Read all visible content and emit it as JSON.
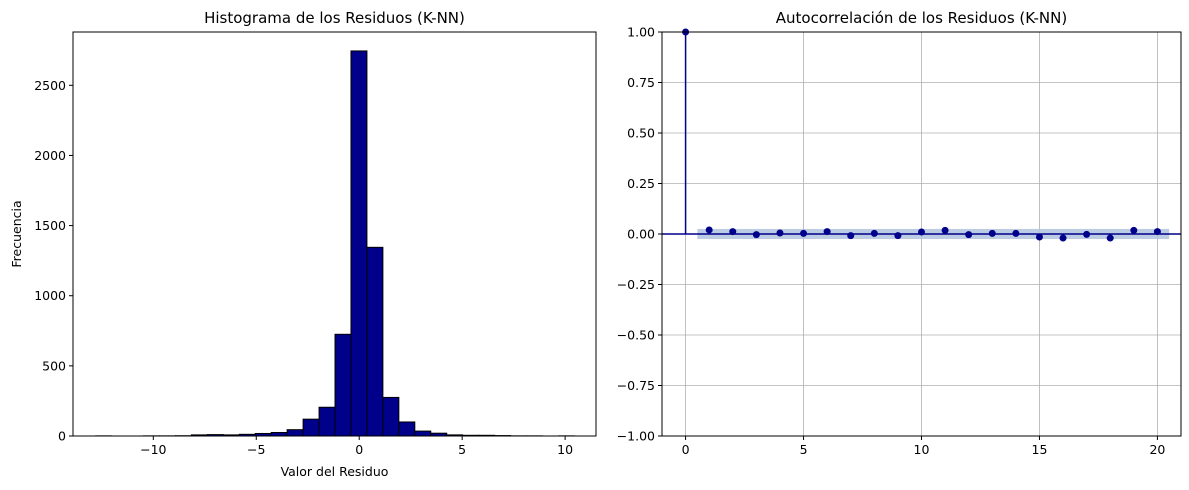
{
  "chart_data": [
    {
      "type": "bar",
      "subtype": "histogram",
      "title": "Histograma de los Residuos (K-NN)",
      "xlabel": "Valor del Residuo",
      "ylabel": "Frecuencia",
      "xlim": [
        -13.9,
        11.5
      ],
      "ylim": [
        0,
        2880
      ],
      "xticks": [
        -10,
        -5,
        0,
        5,
        10
      ],
      "yticks": [
        0,
        500,
        1000,
        1500,
        2000,
        2500
      ],
      "xtick_labels": [
        "−10",
        "−5",
        "0",
        "5",
        "10"
      ],
      "ytick_labels": [
        "0",
        "500",
        "1000",
        "1500",
        "2000",
        "2500"
      ],
      "bin_start": -12.8,
      "bin_width": 0.775,
      "counts": [
        1,
        0,
        0,
        1,
        1,
        2,
        8,
        10,
        8,
        12,
        18,
        25,
        45,
        120,
        205,
        725,
        2745,
        1345,
        275,
        100,
        35,
        20,
        8,
        5,
        5,
        3,
        1,
        1,
        0,
        1
      ],
      "bar_color": "#00008b",
      "edge_color": "#000000",
      "grid": false
    },
    {
      "type": "stem",
      "title": "Autocorrelación de los Residuos (K-NN)",
      "xlabel": "",
      "ylabel": "",
      "xlim": [
        -1,
        21
      ],
      "ylim": [
        -1.0,
        1.0
      ],
      "xticks": [
        0,
        5,
        10,
        15,
        20
      ],
      "yticks": [
        -1.0,
        -0.75,
        -0.5,
        -0.25,
        0.0,
        0.25,
        0.5,
        0.75,
        1.0
      ],
      "xtick_labels": [
        "0",
        "5",
        "10",
        "15",
        "20"
      ],
      "ytick_labels": [
        "−1.00",
        "−0.75",
        "−0.50",
        "−0.25",
        "0.00",
        "0.25",
        "0.50",
        "0.75",
        "1.00"
      ],
      "lags": [
        0,
        1,
        2,
        3,
        4,
        5,
        6,
        7,
        8,
        9,
        10,
        11,
        12,
        13,
        14,
        15,
        16,
        17,
        18,
        19,
        20
      ],
      "values": [
        1.0,
        0.02,
        0.012,
        -0.003,
        0.005,
        0.003,
        0.012,
        -0.008,
        0.003,
        -0.008,
        0.01,
        0.018,
        -0.003,
        0.003,
        0.003,
        -0.015,
        -0.02,
        -0.002,
        -0.02,
        0.018,
        0.012
      ],
      "confidence_band": {
        "from_lag": 0.5,
        "to_lag": 20.5,
        "lower": -0.025,
        "upper": 0.025
      },
      "marker_color": "#00008b",
      "band_color": "#b0c4de",
      "grid": true
    }
  ]
}
